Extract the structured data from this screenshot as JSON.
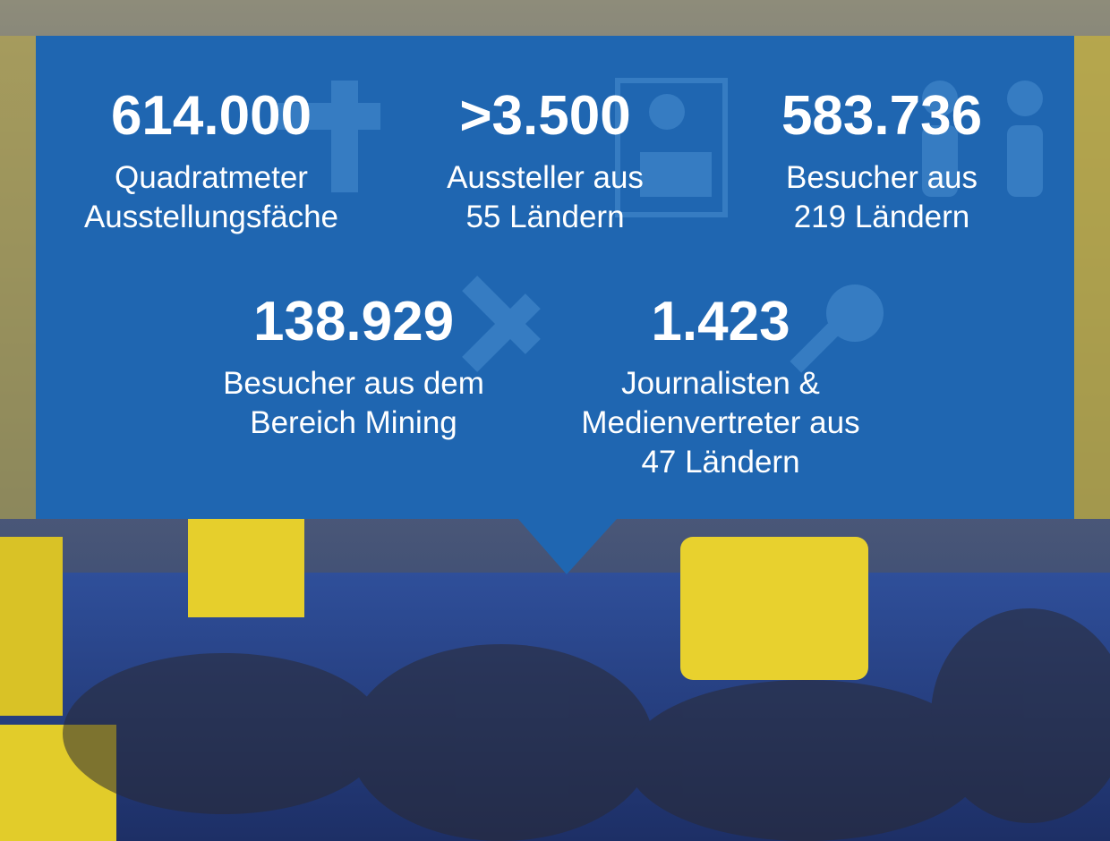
{
  "stats": [
    {
      "number": "614.000",
      "lines": [
        "Quadratmeter",
        "Ausstellungsfäche"
      ]
    },
    {
      "number": ">3.500",
      "lines": [
        "Aussteller aus",
        "55 Ländern"
      ]
    },
    {
      "number": "583.736",
      "lines": [
        "Besucher aus",
        "219 Ländern"
      ]
    },
    {
      "number": "138.929",
      "lines": [
        "Besucher aus dem",
        "Bereich Mining"
      ]
    },
    {
      "number": "1.423",
      "lines": [
        "Journalisten &",
        "Medienvertreter aus",
        "47 Ländern"
      ]
    }
  ]
}
